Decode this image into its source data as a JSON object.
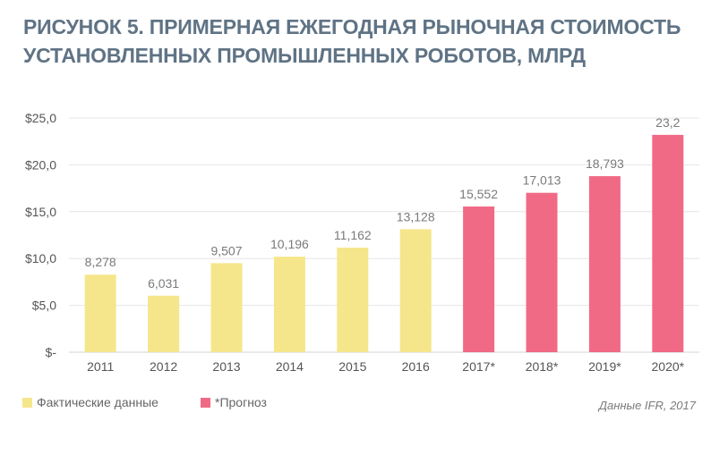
{
  "header": {
    "title_line1": "РИСУНОК 5. ПРИМЕРНАЯ ЕЖЕГОДНАЯ РЫНОЧНАЯ СТОИМОСТЬ",
    "title_line2": "УСТАНОВЛЕННЫХ ПРОМЫШЛЕННЫХ РОБОТОВ, МЛРД"
  },
  "source": "Данные IFR, 2017",
  "chart_data": {
    "type": "bar",
    "title": "РИСУНОК 5. ПРИМЕРНАЯ ЕЖЕГОДНАЯ РЫНОЧНАЯ СТОИМОСТЬ УСТАНОВЛЕННЫХ ПРОМЫШЛЕННЫХ РОБОТОВ, МЛРД",
    "categories": [
      "2011",
      "2012",
      "2013",
      "2014",
      "2015",
      "2016",
      "2017*",
      "2018*",
      "2019*",
      "2020*"
    ],
    "values": [
      8.278,
      6.031,
      9.507,
      10.196,
      11.162,
      13.128,
      15.552,
      17.013,
      18.793,
      23.2
    ],
    "value_labels": [
      "8,278",
      "6,031",
      "9,507",
      "10,196",
      "11,162",
      "13,128",
      "15,552",
      "17,013",
      "18,793",
      "23,2"
    ],
    "groups": [
      "actual",
      "actual",
      "actual",
      "actual",
      "actual",
      "actual",
      "forecast",
      "forecast",
      "forecast",
      "forecast"
    ],
    "ylim": [
      0,
      25
    ],
    "yticks": [
      0,
      5,
      10,
      15,
      20,
      25
    ],
    "ytick_labels": [
      "$-",
      "$5,0",
      "$10,0",
      "$15,0",
      "$20,0",
      "$25,0"
    ],
    "grid": true,
    "legend": {
      "placement": "bottom-left",
      "items": [
        {
          "label": "Фактические данные",
          "color": "#f5e68b",
          "group": "actual"
        },
        {
          "label": "*Прогноз",
          "color": "#f06a86",
          "group": "forecast"
        }
      ]
    },
    "colors": {
      "actual": "#f5e68b",
      "forecast": "#f06a86",
      "grid": "#e6e6e6",
      "axis_text": "#555555",
      "label_text": "#7a7a7a"
    }
  }
}
